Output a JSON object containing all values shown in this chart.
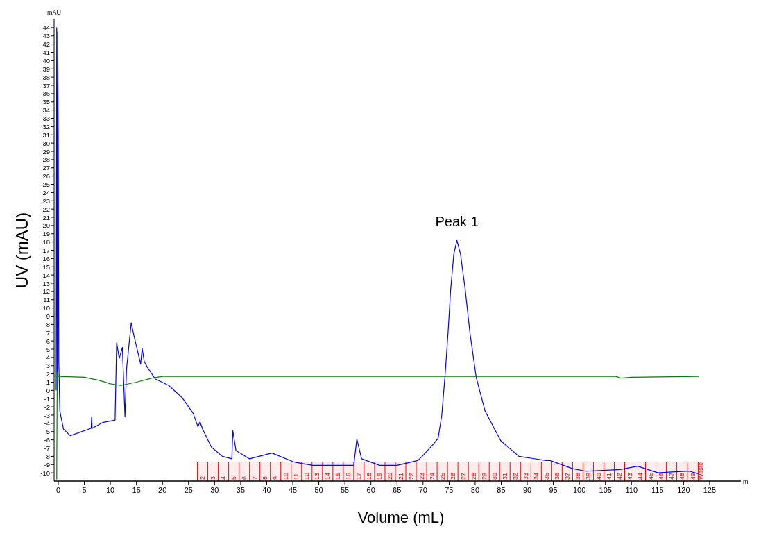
{
  "chart_data": {
    "type": "line",
    "xlabel": "Volume (mL)",
    "ylabel": "UV (mAU)",
    "annotations": [
      "mAU",
      "ml",
      {
        "text": "Peak 1",
        "x": 76.5,
        "y": 18.2
      }
    ],
    "xlim": [
      -0.8,
      131
    ],
    "ylim": [
      -11,
      45
    ],
    "xticks": [
      0,
      5,
      10,
      15,
      20,
      25,
      30,
      35,
      40,
      45,
      50,
      55,
      60,
      65,
      70,
      75,
      80,
      85,
      90,
      95,
      100,
      105,
      110,
      115,
      120,
      125
    ],
    "yticks": [
      -10,
      -9,
      -8,
      -7,
      -6,
      -5,
      -4,
      -3,
      -2,
      -1,
      0,
      1,
      2,
      3,
      4,
      5,
      6,
      7,
      8,
      9,
      10,
      11,
      12,
      13,
      14,
      15,
      16,
      17,
      18,
      19,
      20,
      21,
      22,
      23,
      24,
      25,
      26,
      27,
      28,
      29,
      30,
      31,
      32,
      33,
      34,
      35,
      36,
      37,
      38,
      39,
      40,
      41,
      42,
      43,
      44
    ],
    "grid": false,
    "series": [
      {
        "color": "#0000ff",
        "x": [
          -0.4,
          -0.3,
          -0.2,
          -0.1,
          0,
          0.1,
          0.3,
          1.0,
          2.3,
          6.3,
          6.4,
          6.5,
          8.5,
          10.9,
          11.2,
          11.7,
          12.3,
          12.8,
          13.1,
          14.0,
          14.5,
          15.8,
          16.1,
          16.5,
          17.1,
          18.6,
          21.2,
          23.8,
          25.9,
          26.8,
          27.2,
          27.7,
          29.4,
          31.5,
          33.3,
          33.5,
          34.1,
          36.7,
          41.0,
          45.3,
          48.8,
          56.7,
          57.3,
          58.2,
          61.7,
          65.0,
          69.0,
          70.0,
          72.0,
          72.9,
          73.6,
          74.2,
          74.8,
          75.3,
          75.9,
          76.5,
          77.2,
          78.1,
          79.0,
          80.2,
          81.9,
          84.9,
          88.4,
          93.6,
          94.4,
          98.7,
          101.3,
          107.8,
          111.2,
          115.1,
          117.7,
          121.1,
          122.8
        ],
        "values": [
          0,
          44,
          2,
          43.5,
          30,
          3.5,
          -2.5,
          -4.7,
          -5.5,
          -4.6,
          -3.2,
          -4.6,
          -3.9,
          -3.6,
          5.8,
          3.9,
          5.2,
          -3.2,
          2.6,
          8.2,
          6.7,
          3.2,
          5.1,
          3.5,
          2.8,
          1.4,
          0.6,
          -0.9,
          -2.8,
          -4.4,
          -3.8,
          -4.7,
          -6.9,
          -8.0,
          -8.3,
          -4.9,
          -7.3,
          -8.3,
          -7.6,
          -8.7,
          -9.1,
          -9.1,
          -5.9,
          -8.3,
          -9.1,
          -9.1,
          -8.5,
          -7.9,
          -6.5,
          -5.8,
          -3.0,
          1.6,
          7,
          12.2,
          16.5,
          18.2,
          16.5,
          12.2,
          7,
          1.6,
          -2.5,
          -6.1,
          -8.0,
          -8.5,
          -8.5,
          -9.5,
          -9.8,
          -9.6,
          -9.2,
          -10.0,
          -9.9,
          -9.8,
          -10.1
        ]
      },
      {
        "color": "#008000",
        "x": [
          -0.3,
          -0.2,
          0,
          5,
          8,
          10,
          12,
          15,
          18,
          20,
          57,
          107,
          108,
          110,
          123
        ],
        "values": [
          -10.8,
          2.2,
          1.7,
          1.6,
          1.2,
          0.8,
          0.6,
          1.0,
          1.5,
          1.7,
          1.7,
          1.7,
          1.5,
          1.6,
          1.7
        ]
      }
    ],
    "bands": [
      {
        "axis": "x",
        "from": 26.7,
        "to": 28.7,
        "label": "2",
        "color": "#ff0000"
      },
      {
        "axis": "x",
        "from": 28.7,
        "to": 30.7,
        "label": "3",
        "color": "#ff0000"
      },
      {
        "axis": "x",
        "from": 30.7,
        "to": 32.7,
        "label": "4",
        "color": "#ff0000"
      },
      {
        "axis": "x",
        "from": 32.7,
        "to": 34.7,
        "label": "5",
        "color": "#ff0000"
      },
      {
        "axis": "x",
        "from": 34.7,
        "to": 36.7,
        "label": "6",
        "color": "#ff0000"
      },
      {
        "axis": "x",
        "from": 36.7,
        "to": 38.7,
        "label": "7",
        "color": "#ff0000"
      },
      {
        "axis": "x",
        "from": 38.7,
        "to": 40.7,
        "label": "8",
        "color": "#ff0000"
      },
      {
        "axis": "x",
        "from": 40.7,
        "to": 42.7,
        "label": "9",
        "color": "#ff0000"
      },
      {
        "axis": "x",
        "from": 42.7,
        "to": 44.7,
        "label": "10",
        "color": "#ff0000"
      },
      {
        "axis": "x",
        "from": 44.7,
        "to": 46.7,
        "label": "11",
        "color": "#ff0000"
      },
      {
        "axis": "x",
        "from": 46.7,
        "to": 48.7,
        "label": "12",
        "color": "#ff0000"
      },
      {
        "axis": "x",
        "from": 48.7,
        "to": 50.7,
        "label": "13",
        "color": "#ff0000"
      },
      {
        "axis": "x",
        "from": 50.7,
        "to": 52.7,
        "label": "14",
        "color": "#ff0000"
      },
      {
        "axis": "x",
        "from": 52.7,
        "to": 54.7,
        "label": "15",
        "color": "#ff0000"
      },
      {
        "axis": "x",
        "from": 54.7,
        "to": 56.7,
        "label": "16",
        "color": "#ff0000"
      },
      {
        "axis": "x",
        "from": 56.7,
        "to": 58.7,
        "label": "17",
        "color": "#ff0000"
      },
      {
        "axis": "x",
        "from": 58.7,
        "to": 60.7,
        "label": "18",
        "color": "#ff0000"
      },
      {
        "axis": "x",
        "from": 60.7,
        "to": 62.7,
        "label": "19",
        "color": "#ff0000"
      },
      {
        "axis": "x",
        "from": 62.7,
        "to": 64.7,
        "label": "20",
        "color": "#ff0000"
      },
      {
        "axis": "x",
        "from": 64.7,
        "to": 66.7,
        "label": "21",
        "color": "#ff0000"
      },
      {
        "axis": "x",
        "from": 66.7,
        "to": 68.7,
        "label": "22",
        "color": "#ff0000"
      },
      {
        "axis": "x",
        "from": 68.7,
        "to": 70.7,
        "label": "23",
        "color": "#ff0000"
      },
      {
        "axis": "x",
        "from": 70.7,
        "to": 72.7,
        "label": "24",
        "color": "#ff0000"
      },
      {
        "axis": "x",
        "from": 72.7,
        "to": 74.7,
        "label": "25",
        "color": "#ff0000"
      },
      {
        "axis": "x",
        "from": 74.7,
        "to": 76.7,
        "label": "26",
        "color": "#ff0000"
      },
      {
        "axis": "x",
        "from": 76.7,
        "to": 78.7,
        "label": "27",
        "color": "#ff0000"
      },
      {
        "axis": "x",
        "from": 78.7,
        "to": 80.7,
        "label": "28",
        "color": "#ff0000"
      },
      {
        "axis": "x",
        "from": 80.7,
        "to": 82.7,
        "label": "29",
        "color": "#ff0000"
      },
      {
        "axis": "x",
        "from": 82.7,
        "to": 84.7,
        "label": "30",
        "color": "#ff0000"
      },
      {
        "axis": "x",
        "from": 84.7,
        "to": 86.7,
        "label": "31",
        "color": "#ff0000"
      },
      {
        "axis": "x",
        "from": 86.7,
        "to": 88.7,
        "label": "32",
        "color": "#ff0000"
      },
      {
        "axis": "x",
        "from": 88.7,
        "to": 90.7,
        "label": "33",
        "color": "#ff0000"
      },
      {
        "axis": "x",
        "from": 90.7,
        "to": 92.7,
        "label": "34",
        "color": "#ff0000"
      },
      {
        "axis": "x",
        "from": 92.7,
        "to": 94.7,
        "label": "35",
        "color": "#ff0000"
      },
      {
        "axis": "x",
        "from": 94.7,
        "to": 96.7,
        "label": "36",
        "color": "#ff0000"
      },
      {
        "axis": "x",
        "from": 96.7,
        "to": 98.7,
        "label": "37",
        "color": "#ff0000"
      },
      {
        "axis": "x",
        "from": 98.7,
        "to": 100.7,
        "label": "38",
        "color": "#ff0000"
      },
      {
        "axis": "x",
        "from": 100.7,
        "to": 102.7,
        "label": "39",
        "color": "#ff0000"
      },
      {
        "axis": "x",
        "from": 102.7,
        "to": 104.7,
        "label": "40",
        "color": "#ff0000"
      },
      {
        "axis": "x",
        "from": 104.7,
        "to": 106.7,
        "label": "41",
        "color": "#ff0000"
      },
      {
        "axis": "x",
        "from": 106.7,
        "to": 108.7,
        "label": "42",
        "color": "#ff0000"
      },
      {
        "axis": "x",
        "from": 108.7,
        "to": 110.7,
        "label": "43",
        "color": "#ff0000"
      },
      {
        "axis": "x",
        "from": 110.7,
        "to": 112.7,
        "label": "44",
        "color": "#ff0000"
      },
      {
        "axis": "x",
        "from": 112.7,
        "to": 114.7,
        "label": "45",
        "color": "#ff0000"
      },
      {
        "axis": "x",
        "from": 114.7,
        "to": 116.7,
        "label": "46",
        "color": "#ff0000"
      },
      {
        "axis": "x",
        "from": 116.7,
        "to": 118.7,
        "label": "47",
        "color": "#ff0000"
      },
      {
        "axis": "x",
        "from": 118.7,
        "to": 120.7,
        "label": "48",
        "color": "#ff0000"
      },
      {
        "axis": "x",
        "from": 120.7,
        "to": 122.8,
        "label": "49",
        "color": "#ff0000"
      },
      {
        "axis": "x",
        "from": 122.8,
        "to": 123.8,
        "label": "Waste",
        "color": "#ff0000"
      }
    ]
  }
}
